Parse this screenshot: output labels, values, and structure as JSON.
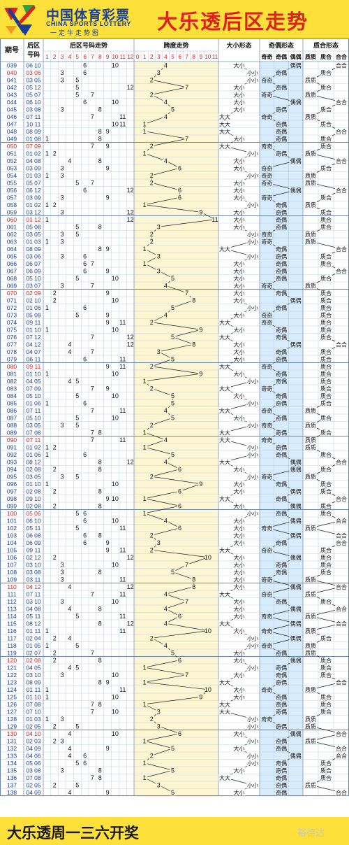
{
  "header": {
    "logo_cn": "中国体育彩票",
    "logo_en": "CHINA SPORTS LOTTERY",
    "logo_sub": "一定牛走势图",
    "title": "大乐透后区走势"
  },
  "footer": {
    "text": "大乐透周一三六开奖",
    "watermark": "裕德达"
  },
  "columns": {
    "issue": "期号",
    "back_line1": "后区",
    "back_line2": "号码",
    "number_trend": "后区号码走势",
    "span_trend": "跨度走势",
    "big_small": "大小形态",
    "odd_even": "奇偶形态",
    "prime": "质合形态",
    "odd_even_sub": [
      "奇奇",
      "奇偶",
      "偶偶"
    ],
    "prime_sub": [
      "质质",
      "质合",
      "合合"
    ]
  },
  "words": {
    "big": "大",
    "small": "小",
    "odd": "奇",
    "even": "偶",
    "prime": "质",
    "composite": "合"
  },
  "colors": {
    "header_bg": "#fde03a",
    "number_col_header": "#e0201b",
    "issue_text": "#1a3f96",
    "last_issue_text": "#e0201b",
    "span_bg": "#fdf6d2",
    "odd_even_bg": "#d8ecfb",
    "grid": "#a9c0e0"
  },
  "chart_data": {
    "type": "table",
    "number_axis": [
      1,
      2,
      3,
      4,
      5,
      6,
      7,
      8,
      9,
      10,
      11,
      12
    ],
    "span_axis": [
      0,
      1,
      2,
      3,
      4,
      5,
      6,
      7,
      8,
      9,
      10,
      11
    ],
    "rows": [
      {
        "issue": "039",
        "nums": [
          6,
          10
        ]
      },
      {
        "issue": "040",
        "nums": [
          3,
          6
        ]
      },
      {
        "issue": "041",
        "nums": [
          3,
          5
        ]
      },
      {
        "issue": "042",
        "nums": [
          5,
          12
        ]
      },
      {
        "issue": "043",
        "nums": [
          5,
          7
        ]
      },
      {
        "issue": "044",
        "nums": [
          6,
          10
        ]
      },
      {
        "issue": "045",
        "nums": [
          3,
          8
        ]
      },
      {
        "issue": "046",
        "nums": [
          7,
          11
        ]
      },
      {
        "issue": "047",
        "nums": [
          10,
          11
        ]
      },
      {
        "issue": "048",
        "nums": [
          8,
          9
        ]
      },
      {
        "issue": "049",
        "nums": [
          1,
          8
        ]
      },
      {
        "issue": "050",
        "nums": [
          7,
          9
        ]
      },
      {
        "issue": "051",
        "nums": [
          1,
          2
        ]
      },
      {
        "issue": "052",
        "nums": [
          4,
          8
        ]
      },
      {
        "issue": "053",
        "nums": [
          3,
          9
        ]
      },
      {
        "issue": "054",
        "nums": [
          1,
          3
        ]
      },
      {
        "issue": "055",
        "nums": [
          5,
          7
        ]
      },
      {
        "issue": "056",
        "nums": [
          6,
          12
        ]
      },
      {
        "issue": "057",
        "nums": [
          3,
          9
        ]
      },
      {
        "issue": "058",
        "nums": [
          1,
          2
        ]
      },
      {
        "issue": "059",
        "nums": [
          3,
          12
        ]
      },
      {
        "issue": "060",
        "nums": [
          1,
          12
        ]
      },
      {
        "issue": "061",
        "nums": [
          5,
          8
        ]
      },
      {
        "issue": "062",
        "nums": [
          3,
          5
        ]
      },
      {
        "issue": "063",
        "nums": [
          1,
          3
        ]
      },
      {
        "issue": "064",
        "nums": [
          8,
          9
        ]
      },
      {
        "issue": "065",
        "nums": [
          3,
          6
        ]
      },
      {
        "issue": "066",
        "nums": [
          6,
          7
        ]
      },
      {
        "issue": "067",
        "nums": [
          6,
          9
        ]
      },
      {
        "issue": "068",
        "nums": [
          5,
          10
        ]
      },
      {
        "issue": "069",
        "nums": [
          3,
          7
        ]
      },
      {
        "issue": "070",
        "nums": [
          2,
          9
        ]
      },
      {
        "issue": "071",
        "nums": [
          2,
          10
        ]
      },
      {
        "issue": "072",
        "nums": [
          1,
          6
        ]
      },
      {
        "issue": "073",
        "nums": [
          5,
          9
        ]
      },
      {
        "issue": "074",
        "nums": [
          9,
          11
        ]
      },
      {
        "issue": "075",
        "nums": [
          1,
          10
        ]
      },
      {
        "issue": "076",
        "nums": [
          7,
          12
        ]
      },
      {
        "issue": "077",
        "nums": [
          4,
          12
        ]
      },
      {
        "issue": "078",
        "nums": [
          4,
          7
        ]
      },
      {
        "issue": "079",
        "nums": [
          6,
          11
        ]
      },
      {
        "issue": "080",
        "nums": [
          9,
          11
        ]
      },
      {
        "issue": "081",
        "nums": [
          1,
          10
        ]
      },
      {
        "issue": "082",
        "nums": [
          4,
          5
        ]
      },
      {
        "issue": "083",
        "nums": [
          7,
          9
        ]
      },
      {
        "issue": "084",
        "nums": [
          5,
          10
        ]
      },
      {
        "issue": "085",
        "nums": [
          1,
          6
        ]
      },
      {
        "issue": "086",
        "nums": [
          7,
          11
        ]
      },
      {
        "issue": "087",
        "nums": [
          5,
          10
        ]
      },
      {
        "issue": "088",
        "nums": [
          3,
          5
        ]
      },
      {
        "issue": "089",
        "nums": [
          7,
          8
        ]
      },
      {
        "issue": "090",
        "nums": [
          7,
          11
        ]
      },
      {
        "issue": "091",
        "nums": [
          1,
          2
        ]
      },
      {
        "issue": "092",
        "nums": [
          1,
          6
        ]
      },
      {
        "issue": "093",
        "nums": [
          8,
          12
        ]
      },
      {
        "issue": "094",
        "nums": [
          2,
          8
        ]
      },
      {
        "issue": "095",
        "nums": [
          3,
          5
        ]
      },
      {
        "issue": "096",
        "nums": [
          1,
          10
        ]
      },
      {
        "issue": "097",
        "nums": [
          2,
          8
        ]
      },
      {
        "issue": "098",
        "nums": [
          9,
          10
        ]
      },
      {
        "issue": "099",
        "nums": [
          2,
          8
        ]
      },
      {
        "issue": "100",
        "nums": [
          5,
          6
        ]
      },
      {
        "issue": "101",
        "nums": [
          6,
          10
        ]
      },
      {
        "issue": "102",
        "nums": [
          5,
          11
        ]
      },
      {
        "issue": "103",
        "nums": [
          6,
          8
        ]
      },
      {
        "issue": "104",
        "nums": [
          6,
          9
        ]
      },
      {
        "issue": "105",
        "nums": [
          9,
          11
        ]
      },
      {
        "issue": "106",
        "nums": [
          2,
          12
        ]
      },
      {
        "issue": "107",
        "nums": [
          3,
          10
        ]
      },
      {
        "issue": "108",
        "nums": [
          3,
          8
        ]
      },
      {
        "issue": "109",
        "nums": [
          3,
          11
        ]
      },
      {
        "issue": "110",
        "nums": [
          4,
          12
        ]
      },
      {
        "issue": "111",
        "nums": [
          7,
          11
        ]
      },
      {
        "issue": "112",
        "nums": [
          3,
          10
        ]
      },
      {
        "issue": "113",
        "nums": [
          4,
          8
        ]
      },
      {
        "issue": "114",
        "nums": [
          5,
          11
        ]
      },
      {
        "issue": "115",
        "nums": [
          8,
          12
        ]
      },
      {
        "issue": "116",
        "nums": [
          1,
          11
        ]
      },
      {
        "issue": "117",
        "nums": [
          2,
          4
        ]
      },
      {
        "issue": "118",
        "nums": [
          1,
          5
        ]
      },
      {
        "issue": "119",
        "nums": [
          2,
          7
        ]
      },
      {
        "issue": "120",
        "nums": [
          2,
          8
        ]
      },
      {
        "issue": "121",
        "nums": [
          4,
          5
        ]
      },
      {
        "issue": "122",
        "nums": [
          3,
          10
        ]
      },
      {
        "issue": "123",
        "nums": [
          8,
          9
        ]
      },
      {
        "issue": "124",
        "nums": [
          1,
          11
        ]
      },
      {
        "issue": "125",
        "nums": [
          1,
          10
        ]
      },
      {
        "issue": "126",
        "nums": [
          7,
          8
        ]
      },
      {
        "issue": "127",
        "nums": [
          7,
          10
        ]
      },
      {
        "issue": "128",
        "nums": [
          1,
          3
        ]
      },
      {
        "issue": "129",
        "nums": [
          2,
          5
        ]
      },
      {
        "issue": "130",
        "nums": [
          4,
          10
        ]
      },
      {
        "issue": "131",
        "nums": [
          2,
          3
        ]
      },
      {
        "issue": "132",
        "nums": [
          4,
          9
        ]
      },
      {
        "issue": "133",
        "nums": [
          4,
          6
        ]
      },
      {
        "issue": "134",
        "nums": [
          5,
          6
        ]
      },
      {
        "issue": "135",
        "nums": [
          3,
          8
        ]
      },
      {
        "issue": "136",
        "nums": [
          7,
          8
        ]
      },
      {
        "issue": "137",
        "nums": [
          2,
          5
        ]
      },
      {
        "issue": "138",
        "nums": [
          4,
          9
        ]
      }
    ]
  }
}
